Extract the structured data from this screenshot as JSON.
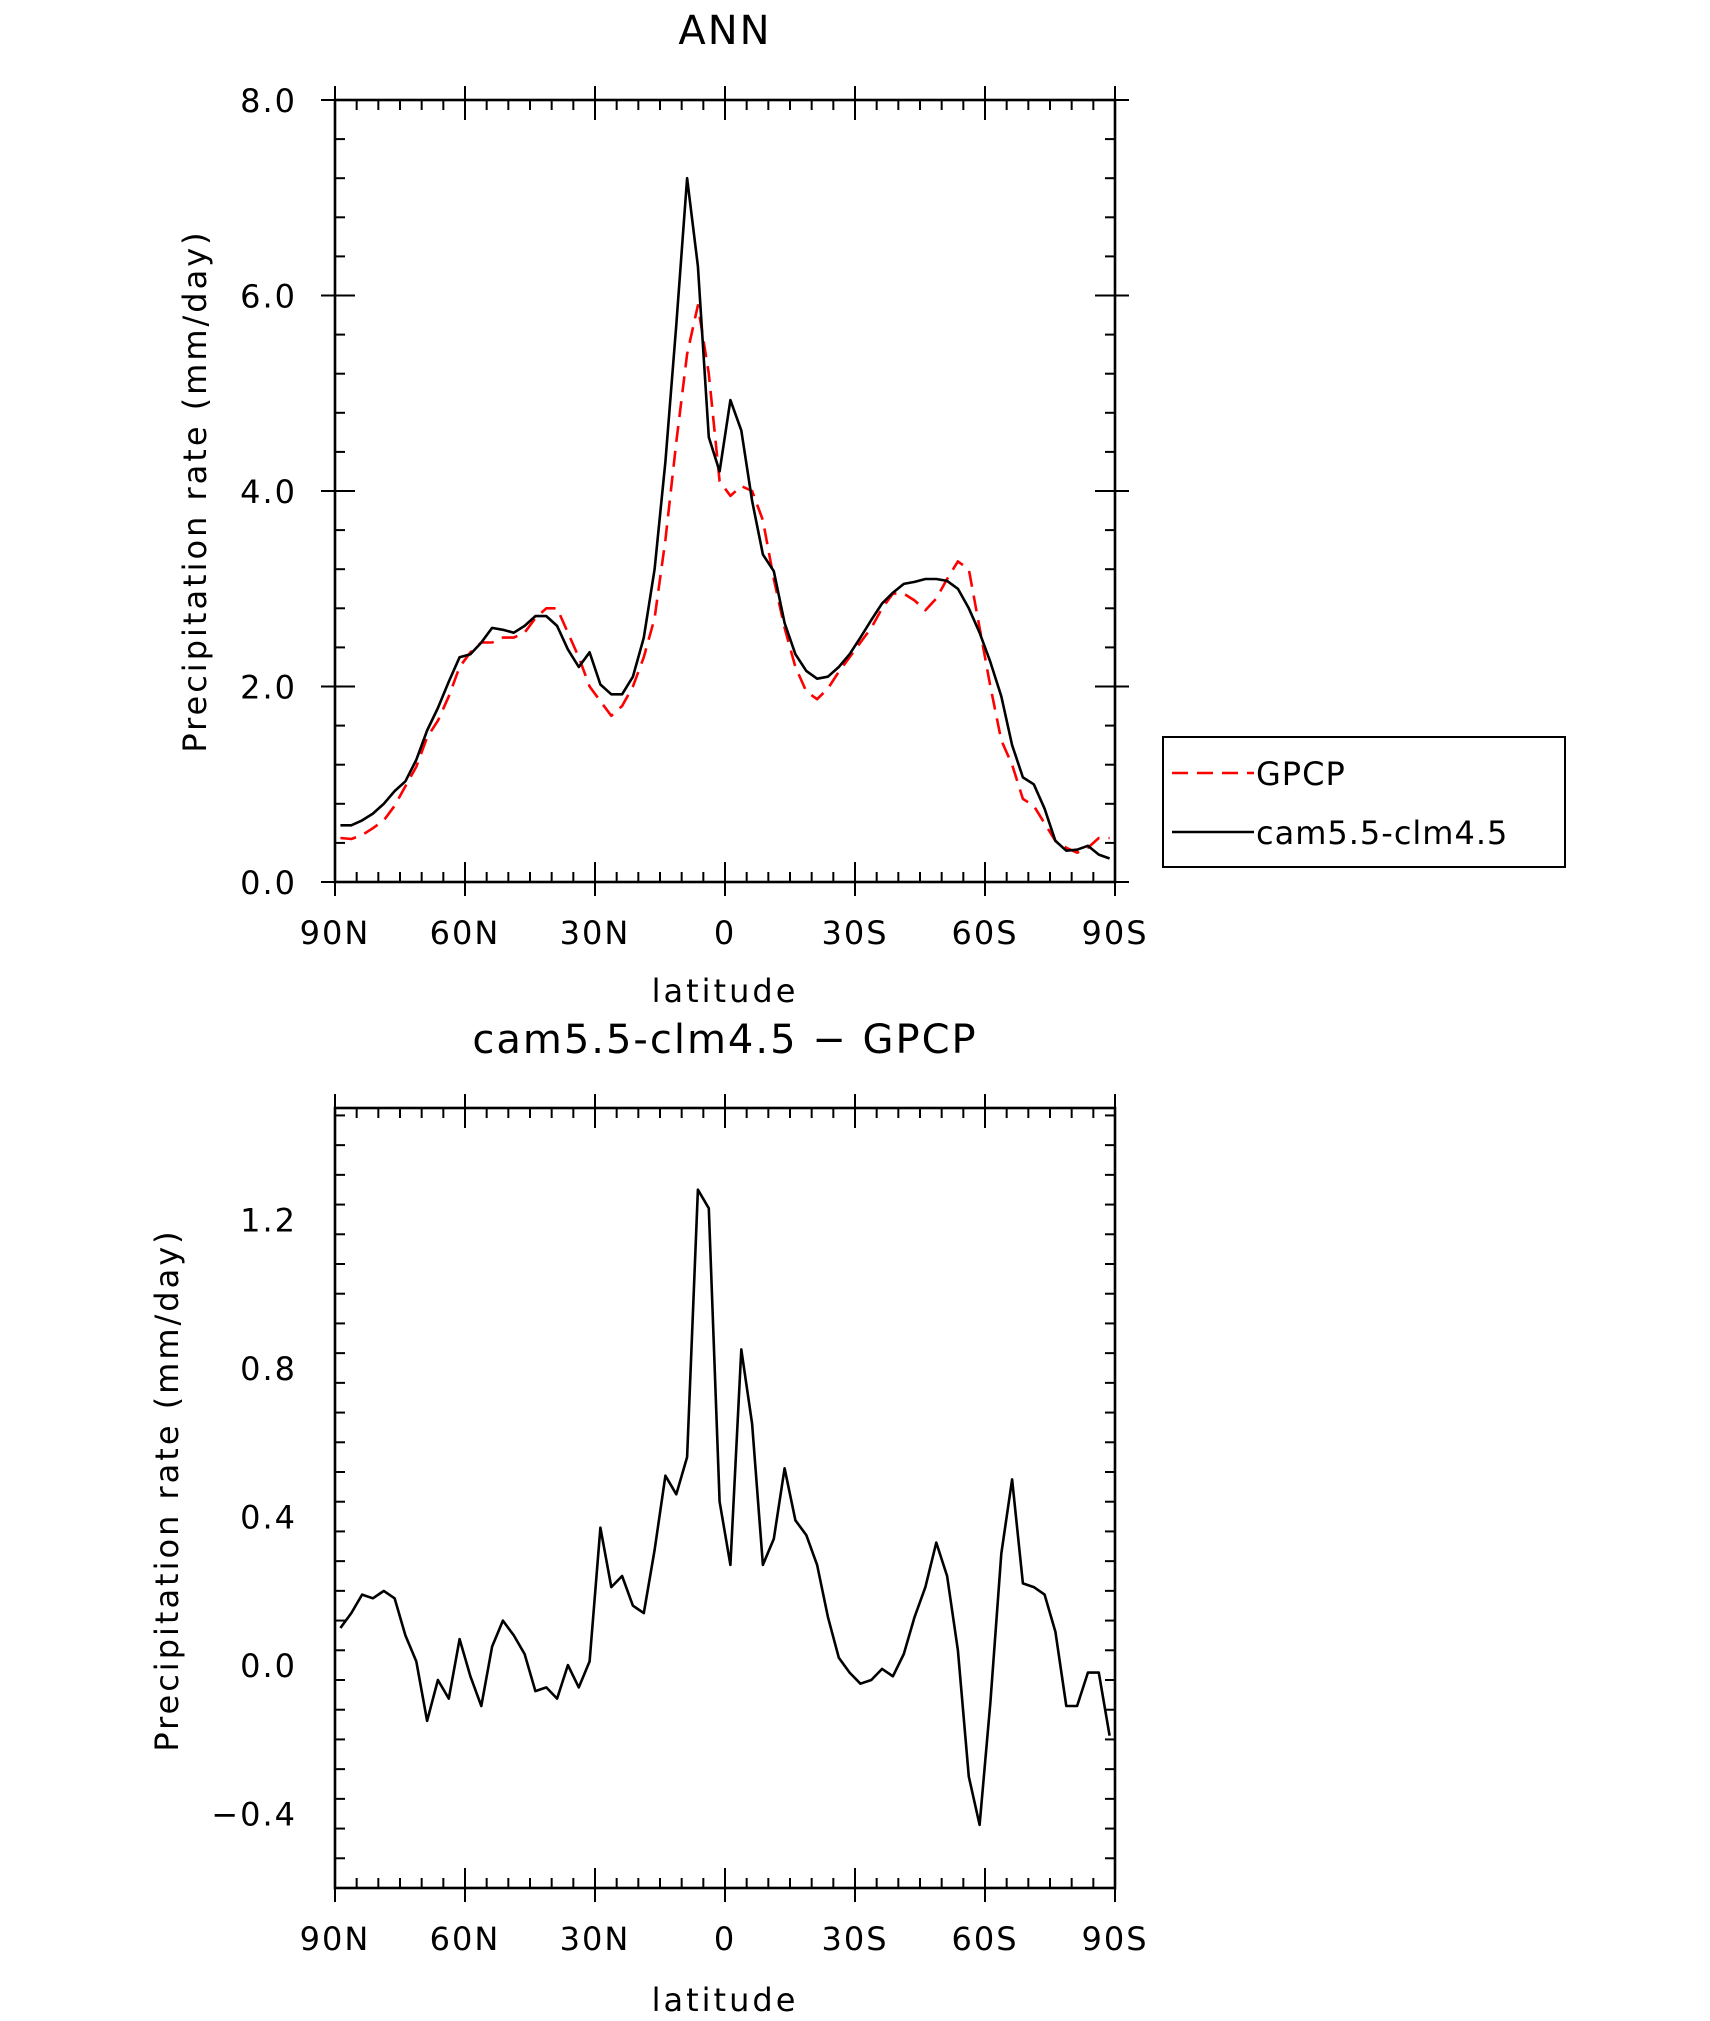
{
  "chart_data": [
    {
      "type": "line",
      "title": "ANN",
      "xlabel": "latitude",
      "ylabel": "Precipitation rate (mm/day)",
      "xlim": [
        90,
        -90
      ],
      "ylim": [
        0,
        8
      ],
      "x_ticks": [
        90,
        60,
        30,
        0,
        -30,
        -60,
        -90
      ],
      "x_tick_labels": [
        "90N",
        "60N",
        "30N",
        "0",
        "30S",
        "60S",
        "90S"
      ],
      "y_ticks": [
        0,
        2,
        4,
        6,
        8
      ],
      "y_tick_labels": [
        "0.0",
        "2.0",
        "4.0",
        "6.0",
        "8.0"
      ],
      "legend": {
        "position": "right",
        "entries": [
          "GPCP",
          "cam5.5-clm4.5"
        ]
      },
      "series": [
        {
          "name": "GPCP",
          "color": "#ff0000",
          "dash": "dashed",
          "x": [
            88.75,
            86.25,
            83.75,
            81.25,
            78.75,
            76.25,
            73.75,
            71.25,
            68.75,
            66.25,
            63.75,
            61.25,
            58.75,
            56.25,
            53.75,
            51.25,
            48.75,
            46.25,
            43.75,
            41.25,
            38.75,
            36.25,
            33.75,
            31.25,
            28.75,
            26.25,
            23.75,
            21.25,
            18.75,
            16.25,
            13.75,
            11.25,
            8.75,
            6.25,
            3.75,
            1.25,
            -1.25,
            -3.75,
            -6.25,
            -8.75,
            -11.25,
            -13.75,
            -16.25,
            -18.75,
            -21.25,
            -23.75,
            -26.25,
            -28.75,
            -31.25,
            -33.75,
            -36.25,
            -38.75,
            -41.25,
            -43.75,
            -46.25,
            -48.75,
            -51.25,
            -53.75,
            -56.25,
            -58.75,
            -61.25,
            -63.75,
            -66.25,
            -68.75,
            -71.25,
            -73.75,
            -76.25,
            -78.75,
            -81.25,
            -83.75,
            -86.25,
            -88.75
          ],
          "y": [
            0.45,
            0.44,
            0.48,
            0.55,
            0.63,
            0.78,
            0.98,
            1.18,
            1.48,
            1.65,
            1.9,
            2.2,
            2.35,
            2.45,
            2.45,
            2.5,
            2.5,
            2.55,
            2.7,
            2.8,
            2.8,
            2.55,
            2.3,
            2.0,
            1.85,
            1.7,
            1.8,
            2.0,
            2.3,
            2.7,
            3.5,
            4.5,
            5.4,
            5.9,
            5.2,
            4.1,
            3.95,
            4.05,
            4.0,
            3.7,
            3.1,
            2.6,
            2.2,
            1.95,
            1.87,
            1.98,
            2.15,
            2.3,
            2.45,
            2.6,
            2.8,
            2.95,
            2.95,
            2.88,
            2.78,
            2.9,
            3.1,
            3.28,
            3.2,
            2.6,
            2.0,
            1.45,
            1.2,
            0.85,
            0.78,
            0.6,
            0.42,
            0.35,
            0.3,
            0.35,
            0.45,
            0.45
          ]
        },
        {
          "name": "cam5.5-clm4.5",
          "color": "#000000",
          "dash": "solid",
          "x": [
            88.75,
            86.25,
            83.75,
            81.25,
            78.75,
            76.25,
            73.75,
            71.25,
            68.75,
            66.25,
            63.75,
            61.25,
            58.75,
            56.25,
            53.75,
            51.25,
            48.75,
            46.25,
            43.75,
            41.25,
            38.75,
            36.25,
            33.75,
            31.25,
            28.75,
            26.25,
            23.75,
            21.25,
            18.75,
            16.25,
            13.75,
            11.25,
            8.75,
            6.25,
            3.75,
            1.25,
            -1.25,
            -3.75,
            -6.25,
            -8.75,
            -11.25,
            -13.75,
            -16.25,
            -18.75,
            -21.25,
            -23.75,
            -26.25,
            -28.75,
            -31.25,
            -33.75,
            -36.25,
            -38.75,
            -41.25,
            -43.75,
            -46.25,
            -48.75,
            -51.25,
            -53.75,
            -56.25,
            -58.75,
            -61.25,
            -63.75,
            -66.25,
            -68.75,
            -71.25,
            -73.75,
            -76.25,
            -78.75,
            -81.25,
            -83.75,
            -86.25,
            -88.75
          ],
          "y": [
            0.58,
            0.58,
            0.63,
            0.7,
            0.8,
            0.93,
            1.03,
            1.25,
            1.55,
            1.78,
            2.05,
            2.3,
            2.33,
            2.45,
            2.6,
            2.58,
            2.55,
            2.62,
            2.72,
            2.72,
            2.62,
            2.38,
            2.2,
            2.35,
            2.02,
            1.92,
            1.92,
            2.1,
            2.5,
            3.2,
            4.3,
            5.7,
            7.2,
            6.3,
            4.55,
            4.2,
            4.93,
            4.62,
            3.9,
            3.35,
            3.18,
            2.65,
            2.33,
            2.16,
            2.08,
            2.1,
            2.2,
            2.33,
            2.5,
            2.68,
            2.85,
            2.96,
            3.05,
            3.07,
            3.1,
            3.1,
            3.08,
            3.0,
            2.8,
            2.55,
            2.25,
            1.9,
            1.4,
            1.07,
            1.0,
            0.75,
            0.42,
            0.32,
            0.33,
            0.37,
            0.28,
            0.24
          ]
        }
      ]
    },
    {
      "type": "line",
      "title": "cam5.5-clm4.5 − GPCP",
      "xlabel": "latitude",
      "ylabel": "Precipitation rate (mm/day)",
      "xlim": [
        90,
        -90
      ],
      "ylim": [
        -0.6,
        1.5
      ],
      "x_ticks": [
        90,
        60,
        30,
        0,
        -30,
        -60,
        -90
      ],
      "x_tick_labels": [
        "90N",
        "60N",
        "30N",
        "0",
        "30S",
        "60S",
        "90S"
      ],
      "y_ticks": [
        -0.4,
        0,
        0.4,
        0.8,
        1.2
      ],
      "y_tick_labels": [
        "−0.4",
        "0.0",
        "0.4",
        "0.8",
        "1.2"
      ],
      "series": [
        {
          "name": "cam5.5-clm4.5 − GPCP",
          "color": "#000000",
          "dash": "solid",
          "x": [
            88.75,
            86.25,
            83.75,
            81.25,
            78.75,
            76.25,
            73.75,
            71.25,
            68.75,
            66.25,
            63.75,
            61.25,
            58.75,
            56.25,
            53.75,
            51.25,
            48.75,
            46.25,
            43.75,
            41.25,
            38.75,
            36.25,
            33.75,
            31.25,
            28.75,
            26.25,
            23.75,
            21.25,
            18.75,
            16.25,
            13.75,
            11.25,
            8.75,
            6.25,
            3.75,
            1.25,
            -1.25,
            -3.75,
            -6.25,
            -8.75,
            -11.25,
            -13.75,
            -16.25,
            -18.75,
            -21.25,
            -23.75,
            -26.25,
            -28.75,
            -31.25,
            -33.75,
            -36.25,
            -38.75,
            -41.25,
            -43.75,
            -46.25,
            -48.75,
            -51.25,
            -53.75,
            -56.25,
            -58.75,
            -61.25,
            -63.75,
            -66.25,
            -68.75,
            -71.25,
            -73.75,
            -76.25,
            -78.75,
            -81.25,
            -83.75,
            -86.25,
            -88.75
          ],
          "y": [
            0.1,
            0.14,
            0.19,
            0.18,
            0.2,
            0.18,
            0.08,
            0.01,
            -0.15,
            -0.04,
            -0.09,
            0.07,
            -0.03,
            -0.11,
            0.05,
            0.12,
            0.08,
            0.03,
            -0.07,
            -0.06,
            -0.09,
            0.0,
            -0.06,
            0.01,
            0.37,
            0.21,
            0.24,
            0.16,
            0.14,
            0.31,
            0.51,
            0.46,
            0.56,
            1.28,
            1.23,
            0.44,
            0.27,
            0.85,
            0.65,
            0.27,
            0.34,
            0.53,
            0.39,
            0.35,
            0.27,
            0.13,
            0.02,
            -0.02,
            -0.05,
            -0.04,
            -0.01,
            -0.03,
            0.03,
            0.13,
            0.21,
            0.33,
            0.24,
            0.04,
            -0.3,
            -0.43,
            -0.1,
            0.3,
            0.5,
            0.22,
            0.21,
            0.19,
            0.09,
            -0.11,
            -0.11,
            -0.02,
            -0.02,
            -0.19
          ]
        }
      ]
    }
  ]
}
